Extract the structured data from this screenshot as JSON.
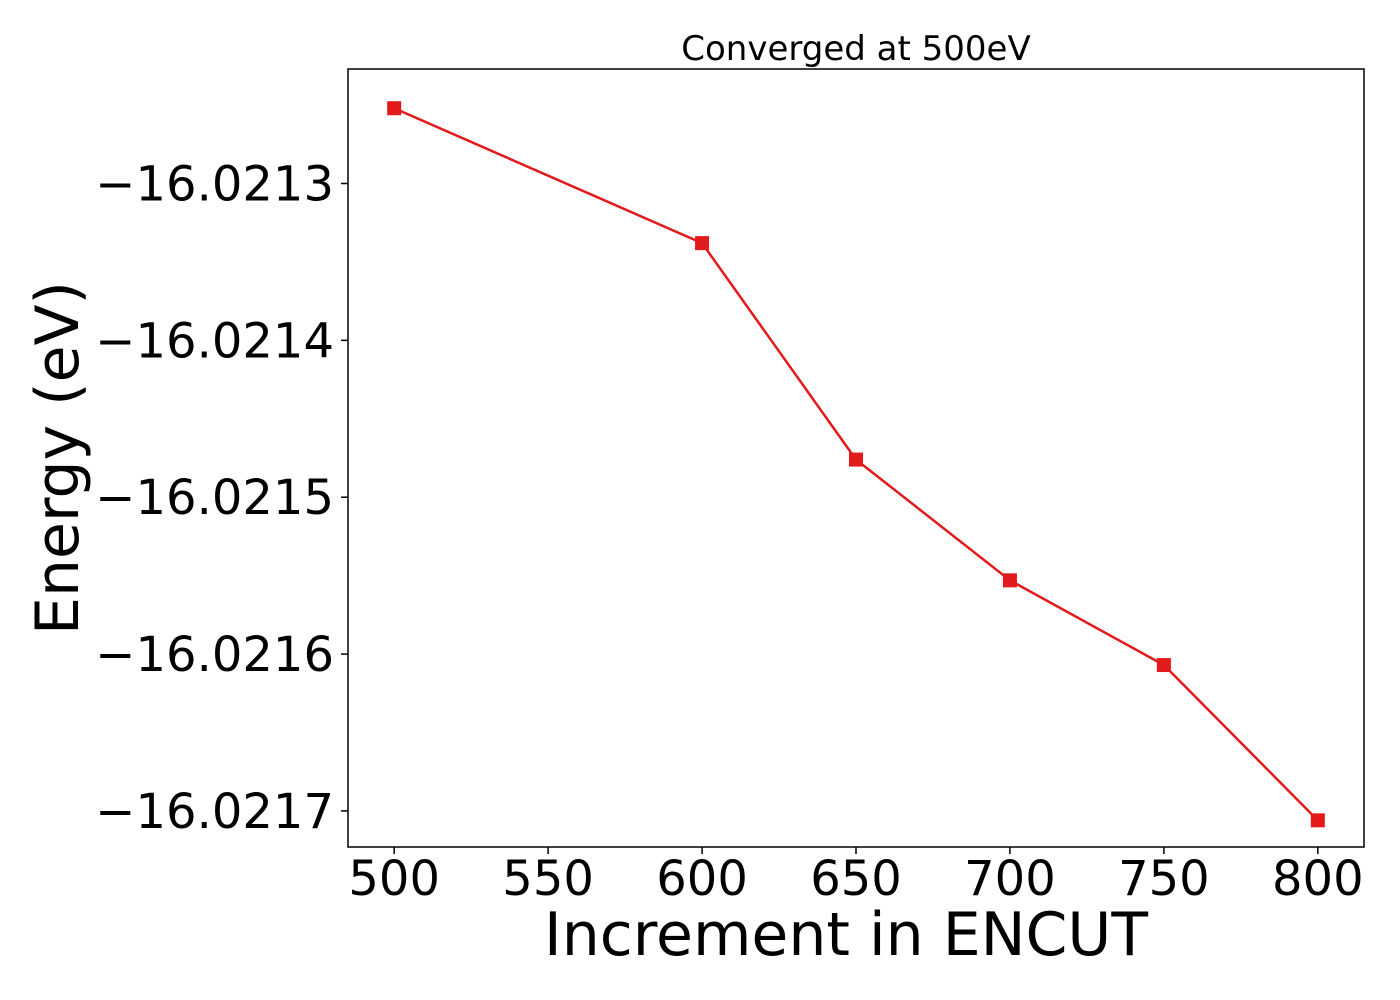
{
  "chart_data": {
    "type": "line",
    "title": "Converged at 500eV",
    "xlabel": "Increment in ENCUT",
    "ylabel": "Energy (eV)",
    "x": [
      500,
      600,
      650,
      700,
      750,
      800
    ],
    "series": [
      {
        "values": [
          -16.021252,
          -16.021338,
          -16.021476,
          -16.021553,
          -16.021607,
          -16.021706
        ],
        "color": "#e31a1c",
        "marker": "square"
      }
    ],
    "xlim": [
      485,
      815
    ],
    "ylim": [
      -16.021723,
      -16.021227
    ],
    "xticks": [
      500,
      550,
      600,
      650,
      700,
      750,
      800
    ],
    "xtick_labels": [
      "500",
      "550",
      "600",
      "650",
      "700",
      "750",
      "800"
    ],
    "yticks": [
      -16.0213,
      -16.0214,
      -16.0215,
      -16.0216,
      -16.0217
    ],
    "ytick_labels": [
      "−16.0213",
      "−16.0214",
      "−16.0215",
      "−16.0216",
      "−16.0217"
    ],
    "grid": false,
    "legend": false
  }
}
